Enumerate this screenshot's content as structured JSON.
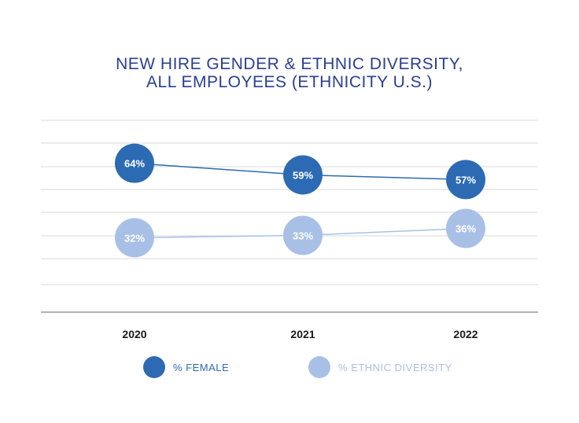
{
  "colors": {
    "title": "#2a3f8f",
    "female": "#2c6bb3",
    "ethnic": "#a9c0e6",
    "grid": "#d9d9d9",
    "axis": "#999999",
    "text": "#1a1a1a",
    "label_on_dark": "#ffffff"
  },
  "chart_data": {
    "type": "line",
    "title_lines": [
      "NEW HIRE GENDER & ETHNIC DIVERSITY,",
      "ALL EMPLOYEES (ETHNICITY U.S.)"
    ],
    "categories": [
      "2020",
      "2021",
      "2022"
    ],
    "ylim": [
      0,
      80
    ],
    "grid": true,
    "legend_position": "bottom",
    "series": [
      {
        "name": "% FEMALE",
        "values": [
          64,
          59,
          57
        ],
        "labels": [
          "64%",
          "59%",
          "57%"
        ]
      },
      {
        "name": "% ETHNIC DIVERSITY",
        "values": [
          32,
          33,
          36
        ],
        "labels": [
          "32%",
          "33%",
          "36%"
        ]
      }
    ]
  }
}
